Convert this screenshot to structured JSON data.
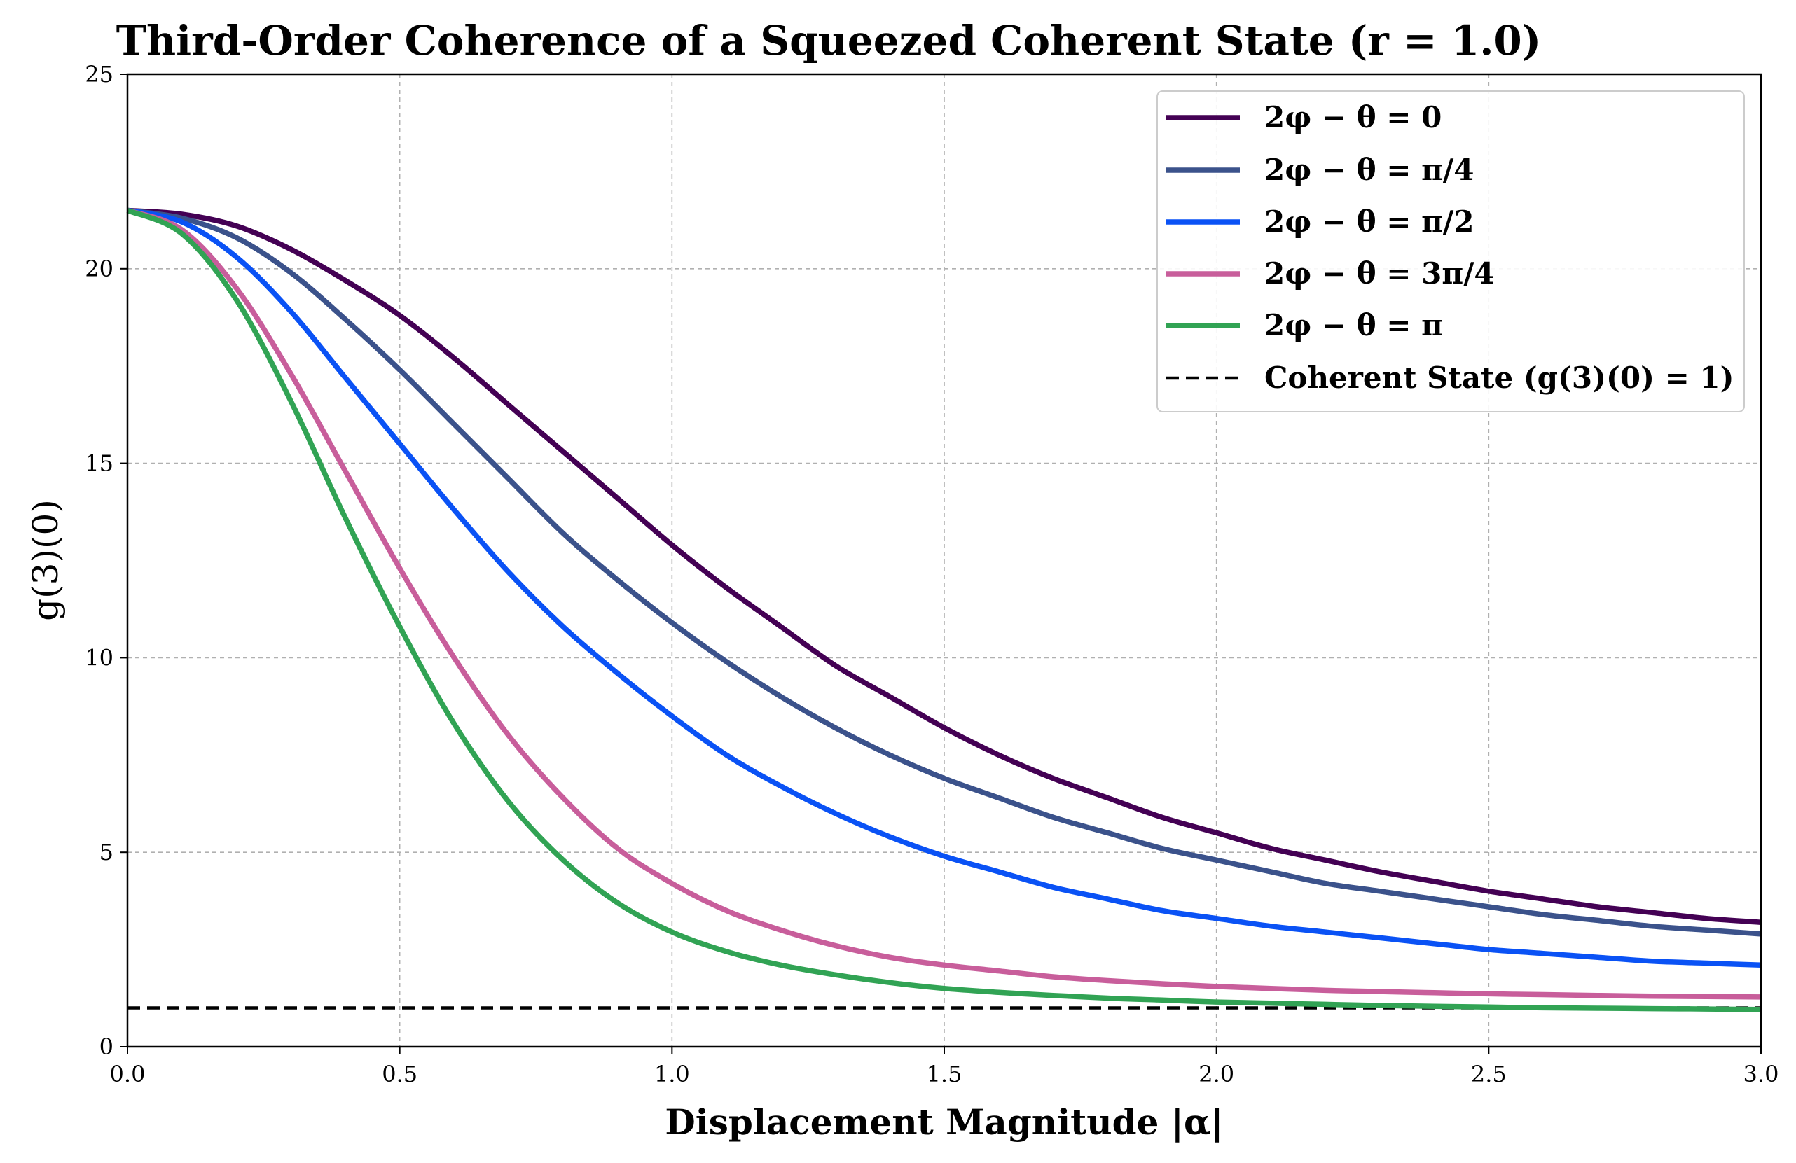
{
  "chart_data": {
    "type": "line",
    "title": "Third-Order Coherence of a Squeezed Coherent State (r = 1.0)",
    "xlabel": "Displacement Magnitude |α|",
    "ylabel": "g(3)(0)",
    "xlim": [
      0,
      3
    ],
    "ylim": [
      0,
      25
    ],
    "xticks": [
      0,
      0.5,
      1,
      1.5,
      2,
      2.5,
      3
    ],
    "xtick_labels": [
      "0.0",
      "0.5",
      "1.0",
      "1.5",
      "2.0",
      "2.5",
      "3.0"
    ],
    "yticks": [
      0,
      5,
      10,
      15,
      20,
      25
    ],
    "ytick_labels": [
      "0",
      "5",
      "10",
      "15",
      "20",
      "25"
    ],
    "grid": true,
    "legend_position": "top-right",
    "x": [
      0,
      0.1,
      0.2,
      0.3,
      0.4,
      0.5,
      0.6,
      0.7,
      0.8,
      0.9,
      1.0,
      1.1,
      1.2,
      1.3,
      1.4,
      1.5,
      1.6,
      1.7,
      1.8,
      1.9,
      2.0,
      2.1,
      2.2,
      2.3,
      2.4,
      2.5,
      2.6,
      2.7,
      2.8,
      2.9,
      3.0
    ],
    "series": [
      {
        "name": "2φ − θ = 0",
        "color": "#440154",
        "values": [
          21.5,
          21.4,
          21.1,
          20.5,
          19.7,
          18.8,
          17.7,
          16.5,
          15.3,
          14.1,
          12.9,
          11.8,
          10.8,
          9.8,
          9.0,
          8.2,
          7.5,
          6.9,
          6.4,
          5.9,
          5.5,
          5.1,
          4.8,
          4.5,
          4.25,
          4.0,
          3.8,
          3.6,
          3.45,
          3.3,
          3.2
        ]
      },
      {
        "name": "2φ − θ = π/4",
        "color": "#3b528b",
        "values": [
          21.5,
          21.3,
          20.8,
          19.9,
          18.7,
          17.4,
          16.0,
          14.6,
          13.2,
          12.0,
          10.9,
          9.9,
          9.0,
          8.2,
          7.5,
          6.9,
          6.4,
          5.9,
          5.5,
          5.1,
          4.8,
          4.5,
          4.2,
          4.0,
          3.8,
          3.6,
          3.4,
          3.25,
          3.1,
          3.0,
          2.9
        ]
      },
      {
        "name": "2φ − θ = π/2",
        "color": "#0a52f5",
        "values": [
          21.5,
          21.2,
          20.3,
          18.9,
          17.2,
          15.5,
          13.8,
          12.2,
          10.8,
          9.6,
          8.5,
          7.5,
          6.7,
          6.0,
          5.4,
          4.9,
          4.5,
          4.1,
          3.8,
          3.5,
          3.3,
          3.1,
          2.95,
          2.8,
          2.65,
          2.5,
          2.4,
          2.3,
          2.2,
          2.15,
          2.1
        ]
      },
      {
        "name": "2φ − θ = 3π/4",
        "color": "#c85e9b",
        "values": [
          21.5,
          21.0,
          19.5,
          17.3,
          14.8,
          12.3,
          10.0,
          8.0,
          6.4,
          5.1,
          4.2,
          3.5,
          3.0,
          2.6,
          2.3,
          2.1,
          1.95,
          1.8,
          1.7,
          1.62,
          1.55,
          1.5,
          1.45,
          1.42,
          1.39,
          1.36,
          1.34,
          1.32,
          1.3,
          1.29,
          1.28
        ]
      },
      {
        "name": "2φ − θ = π",
        "color": "#31a354",
        "values": [
          21.5,
          20.9,
          19.2,
          16.6,
          13.6,
          10.8,
          8.3,
          6.3,
          4.8,
          3.7,
          2.95,
          2.45,
          2.1,
          1.85,
          1.65,
          1.5,
          1.4,
          1.32,
          1.25,
          1.2,
          1.15,
          1.12,
          1.09,
          1.06,
          1.04,
          1.02,
          1.0,
          0.99,
          0.98,
          0.97,
          0.96
        ]
      }
    ],
    "reference_line": {
      "label": "Coherent State (g(3)(0) = 1)",
      "y": 1,
      "color": "#000000",
      "style": "dashed"
    }
  }
}
